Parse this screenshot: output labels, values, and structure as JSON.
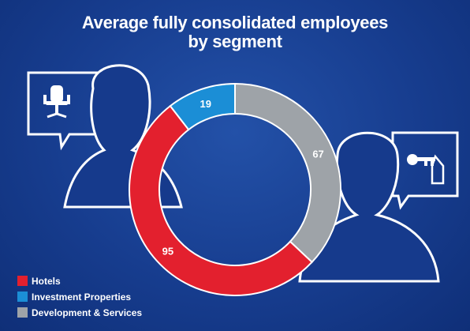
{
  "chart_data": {
    "type": "donut",
    "title": "Average fully consolidated employees\nby segment",
    "series": [
      {
        "name": "Hotels",
        "color": "#e3202e",
        "values": [
          95
        ]
      },
      {
        "name": "Investment Properties",
        "color": "#1b8ed6",
        "values": [
          19
        ]
      },
      {
        "name": "Development & Services",
        "color": "#9ea3a8",
        "values": [
          67
        ]
      }
    ],
    "legend": "bottom-left"
  }
}
